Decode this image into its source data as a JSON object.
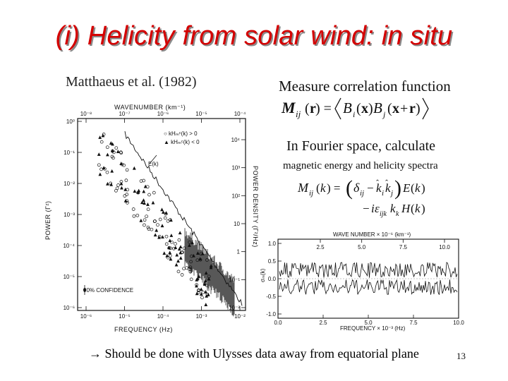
{
  "slide": {
    "title": "(i) Helicity from solar wind: in situ",
    "reference": "Matthaeus et al. (1982)",
    "measure_text": "Measure correlation function",
    "fourier_text": "In Fourier space, calculate",
    "spectra_text": "magnetic energy and helicity spectra",
    "footer_arrow": "→",
    "footer_text": "Should be done with Ulysses data away from equatorial plane",
    "page_number": "13",
    "title_color": "#d40000"
  },
  "left_plot": {
    "top_axis_label": "WAVENUMBER (km⁻¹)",
    "top_ticks": [
      "10⁻⁸",
      "10⁻⁷",
      "10⁻⁶",
      "10⁻⁵",
      "10⁻⁴"
    ],
    "bottom_axis_label": "FREQUENCY (Hz)",
    "bottom_ticks": [
      "10⁻⁶",
      "10⁻⁵",
      "10⁻⁴",
      "10⁻³",
      "10⁻²"
    ],
    "left_axis_label": "POWER (Γ²)",
    "left_ticks": [
      "10⁰",
      "10⁻¹",
      "10⁻²",
      "10⁻³",
      "10⁻⁴",
      "10⁻⁵",
      "10⁻⁶"
    ],
    "right_axis_label": "POWER DENSITY (Γ²/Hz)",
    "right_ticks": [
      "10⁴",
      "10³",
      "10²",
      "10",
      "1",
      "10⁻¹",
      "10⁻²"
    ],
    "legend_pos": "○  kHₘᶜ(k) > 0",
    "legend_neg": "▲  kHₘᶜ(k) < 0",
    "curve_label": "E(k)",
    "confidence_label": "90% CONFIDENCE"
  },
  "right_plot": {
    "top_axis_label": "WAVE NUMBER × 10⁻⁶ (km⁻¹)",
    "top_ticks": [
      "2.5",
      "5.0",
      "7.5",
      "10.0"
    ],
    "bottom_axis_label": "FREQUENCY × 10⁻³ (Hz)",
    "bottom_ticks": [
      "0.0",
      "2.5",
      "5.0",
      "7.5",
      "10.0"
    ],
    "left_axis_label": "σₘ(k)",
    "left_ticks": [
      "1.0",
      "0.5",
      "0.0",
      "-0.5",
      "-1.0"
    ]
  }
}
